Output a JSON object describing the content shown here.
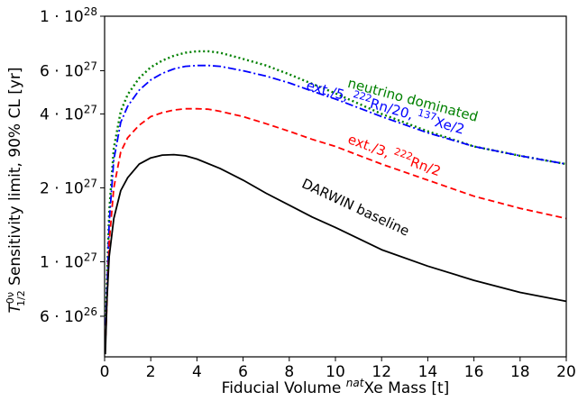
{
  "chart_data": {
    "type": "line",
    "title": "",
    "x_label": {
      "prefix": "Fiducial Volume ",
      "sup": "nat",
      "suffix": "Xe Mass [t]"
    },
    "y_label": {
      "base": "T",
      "sup": "0ν",
      "sub": "1/2",
      "suffix": " Sensitivity limit, 90% CL [yr]"
    },
    "xlim": [
      0,
      20
    ],
    "ylim": [
      4.1e+26,
      1e+28
    ],
    "y_scale": "log",
    "grid": false,
    "x_ticks": [
      {
        "value": 0,
        "label": "0"
      },
      {
        "value": 2,
        "label": "2"
      },
      {
        "value": 4,
        "label": "4"
      },
      {
        "value": 6,
        "label": "6"
      },
      {
        "value": 8,
        "label": "8"
      },
      {
        "value": 10,
        "label": "10"
      },
      {
        "value": 12,
        "label": "12"
      },
      {
        "value": 14,
        "label": "14"
      },
      {
        "value": 16,
        "label": "16"
      },
      {
        "value": 18,
        "label": "18"
      },
      {
        "value": 20,
        "label": "20"
      }
    ],
    "y_ticks": [
      {
        "value": 6e+26,
        "mant": "6",
        "exp": "26"
      },
      {
        "value": 1e+27,
        "mant": "1",
        "exp": "27"
      },
      {
        "value": 2e+27,
        "mant": "2",
        "exp": "27"
      },
      {
        "value": 4e+27,
        "mant": "4",
        "exp": "27"
      },
      {
        "value": 6e+27,
        "mant": "6",
        "exp": "27"
      },
      {
        "value": 1e+28,
        "mant": "1",
        "exp": "28"
      }
    ],
    "series": [
      {
        "id": "neutrino",
        "color": "#008000",
        "dash": "dotted",
        "x": [
          0.05,
          0.2,
          0.4,
          0.7,
          1.0,
          1.5,
          2.0,
          2.5,
          3.0,
          3.5,
          4.0,
          4.5,
          5.0,
          6.0,
          7.0,
          8.0,
          9.0,
          10.0,
          12.0,
          14.0,
          16.0,
          18.0,
          20.0
        ],
        "y": [
          6e+26,
          1.6e+27,
          2.9e+27,
          4.1e+27,
          4.8e+27,
          5.6e+27,
          6.2e+27,
          6.6e+27,
          6.9e+27,
          7.1e+27,
          7.2e+27,
          7.2e+27,
          7.1e+27,
          6.7e+27,
          6.3e+27,
          5.8e+27,
          5.3e+27,
          4.85e+27,
          4e+27,
          3.4e+27,
          2.95e+27,
          2.7e+27,
          2.5e+27
        ]
      },
      {
        "id": "ext5",
        "color": "#0000ff",
        "dash": "dashdot",
        "x": [
          0.05,
          0.2,
          0.4,
          0.7,
          1.0,
          1.5,
          2.0,
          2.5,
          3.0,
          3.5,
          4.0,
          4.5,
          5.0,
          6.0,
          7.0,
          8.0,
          9.0,
          10.0,
          12.0,
          14.0,
          16.0,
          18.0,
          20.0
        ],
        "y": [
          5.5e+26,
          1.45e+27,
          2.6e+27,
          3.7e+27,
          4.3e+27,
          5e+27,
          5.5e+27,
          5.85e+27,
          6.1e+27,
          6.25e+27,
          6.3e+27,
          6.3e+27,
          6.25e+27,
          6e+27,
          5.7e+27,
          5.35e+27,
          4.95e+27,
          4.6e+27,
          3.9e+27,
          3.35e+27,
          2.95e+27,
          2.7e+27,
          2.5e+27
        ]
      },
      {
        "id": "ext3",
        "color": "#ff0000",
        "dash": "dashed",
        "x": [
          0.05,
          0.2,
          0.4,
          0.7,
          1.0,
          1.5,
          2.0,
          2.5,
          3.0,
          3.5,
          4.0,
          4.5,
          5.0,
          6.0,
          7.0,
          8.0,
          9.0,
          10.0,
          12.0,
          14.0,
          16.0,
          18.0,
          20.0
        ],
        "y": [
          5e+26,
          1.2e+27,
          2e+27,
          2.8e+27,
          3.2e+27,
          3.6e+27,
          3.9e+27,
          4.05e+27,
          4.15e+27,
          4.2e+27,
          4.2e+27,
          4.18e+27,
          4.1e+27,
          3.9e+27,
          3.65e+27,
          3.4e+27,
          3.15e+27,
          2.95e+27,
          2.5e+27,
          2.15e+27,
          1.85e+27,
          1.65e+27,
          1.5e+27
        ]
      },
      {
        "id": "baseline",
        "color": "#000000",
        "dash": "solid",
        "x": [
          0.03,
          0.1,
          0.2,
          0.4,
          0.7,
          1.0,
          1.5,
          2.0,
          2.5,
          3.0,
          3.5,
          4.0,
          5.0,
          6.0,
          7.0,
          8.0,
          9.0,
          10.0,
          12.0,
          14.0,
          16.0,
          18.0,
          20.0
        ],
        "y": [
          4.2e+26,
          7e+26,
          1.05e+27,
          1.5e+27,
          1.95e+27,
          2.2e+27,
          2.5e+27,
          2.65e+27,
          2.72e+27,
          2.73e+27,
          2.7e+27,
          2.62e+27,
          2.4e+27,
          2.15e+27,
          1.9e+27,
          1.7e+27,
          1.52e+27,
          1.38e+27,
          1.12e+27,
          9.6e+26,
          8.4e+26,
          7.5e+26,
          6.9e+26
        ]
      }
    ],
    "annotations": [
      {
        "id": "neutrino-label",
        "color": "#008000",
        "x": 10.5,
        "y": 5.15e+27,
        "angle": 15,
        "parts": [
          {
            "t": "neutrino dominated"
          }
        ]
      },
      {
        "id": "ext5-label",
        "color": "#0000ff",
        "x": 8.7,
        "y": 5.05e+27,
        "angle": 16,
        "parts": [
          {
            "t": "ext./5, "
          },
          {
            "t": "222",
            "sup": true
          },
          {
            "t": "Rn/20, "
          },
          {
            "t": "137",
            "sup": true
          },
          {
            "t": "Xe/2"
          }
        ]
      },
      {
        "id": "ext3-label",
        "color": "#ff0000",
        "x": 10.5,
        "y": 3.05e+27,
        "angle": 20,
        "parts": [
          {
            "t": "ext./3, "
          },
          {
            "t": "222",
            "sup": true
          },
          {
            "t": "Rn/2"
          }
        ]
      },
      {
        "id": "baseline-label",
        "color": "#000000",
        "x": 8.5,
        "y": 2.02e+27,
        "angle": 25,
        "parts": [
          {
            "t": "DARWIN baseline"
          }
        ]
      }
    ]
  }
}
